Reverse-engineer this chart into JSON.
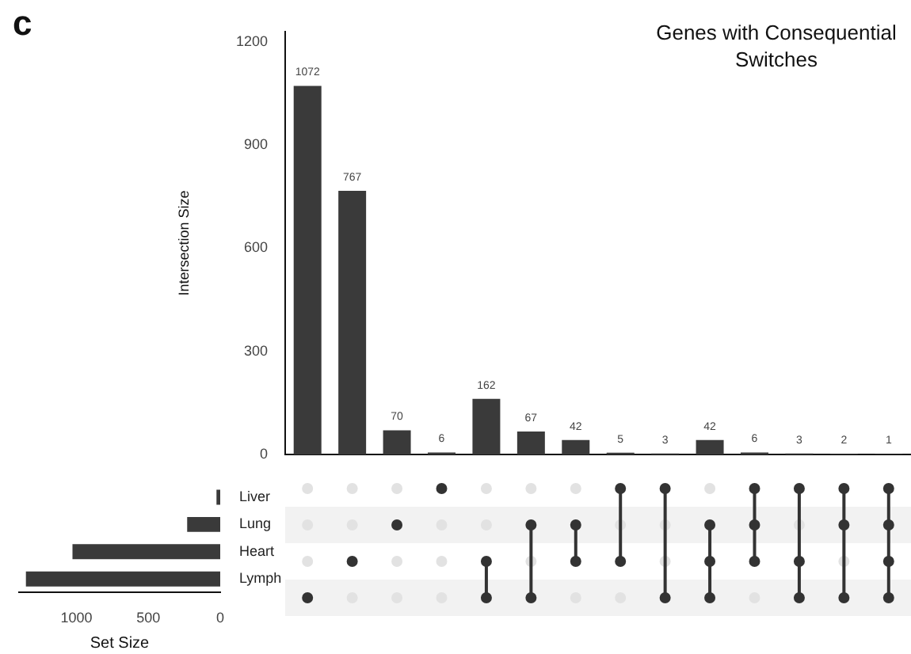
{
  "chart_data": [
    {
      "type": "bar",
      "title": "Genes with Consequential Switches",
      "ylabel": "Intersection Size",
      "categories": [
        null,
        null,
        null,
        null,
        null,
        null,
        null,
        null,
        null,
        null,
        null,
        null,
        null,
        null
      ],
      "values": [
        1072,
        767,
        70,
        6,
        162,
        67,
        42,
        5,
        3,
        42,
        6,
        3,
        2,
        1
      ],
      "color": "#3a3a3a",
      "ylim": [
        0,
        1230
      ],
      "yticks": [
        0,
        300,
        600,
        900,
        1200
      ],
      "grid": false,
      "data_labels": true,
      "tick_labels": "y",
      "legend": false,
      "annotations": [
        "c"
      ]
    },
    {
      "type": "bar",
      "orientation": "horizontal",
      "xlabel": "Set Size",
      "categories": [
        "Liver",
        "Lung",
        "Heart",
        "Lymph"
      ],
      "values": [
        26,
        230,
        1028,
        1352
      ],
      "color": "#3a3a3a",
      "xlim": [
        1400,
        0
      ],
      "xticks": [
        1000,
        500,
        0
      ],
      "grid": false,
      "legend": false
    }
  ]
}
